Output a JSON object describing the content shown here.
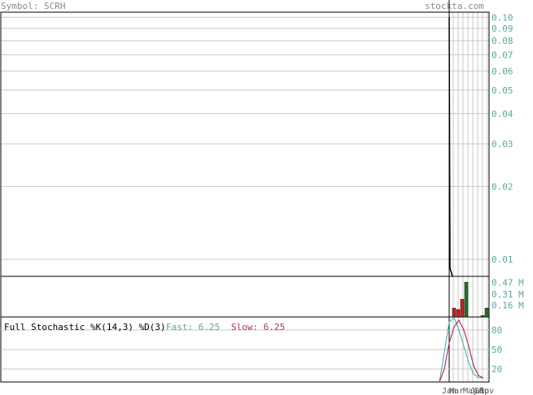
{
  "header": {
    "symbol_label": "Symbol: SCRH",
    "site": "stockta.com"
  },
  "colors": {
    "up": "#1f7a1f",
    "down": "#cc1f1f",
    "grid": "#c8c8c8",
    "axis_text": "#5aa6a0",
    "k_line": "#56b3b0",
    "d_line": "#b0306a"
  },
  "stochastic": {
    "title": "Full Stochastic %K(14,3) %D(3)",
    "fast_label": "Fast: 6.25",
    "slow_label": "Slow: 6.25"
  },
  "chart_data": [
    {
      "type": "line",
      "title": "",
      "ylabel": "",
      "y_scale": "log",
      "ylim": [
        0.0085,
        0.105
      ],
      "y_ticks": [
        "0.10",
        "0.09",
        "0.08",
        "0.07",
        "0.06",
        "0.05",
        "0.04",
        "0.03",
        "0.02",
        "0.01"
      ],
      "grid": true,
      "x_ticks": [
        "Jan",
        "Mar",
        "May",
        "Jul",
        "Sep",
        "Nov"
      ],
      "series": [
        {
          "values": [
            0.1,
            0.0092,
            0.0085
          ]
        }
      ]
    },
    {
      "type": "bar",
      "title": "",
      "y_ticks": [
        "0.47 M",
        "0.31 M",
        "0.16 M"
      ],
      "ylim": [
        0,
        0.55
      ],
      "values": [
        0.12,
        0.1,
        0.24,
        0.47,
        0.0,
        0.0,
        0.0,
        0.02,
        0.12
      ],
      "directions": [
        "down",
        "down",
        "down",
        "up",
        "down",
        "down",
        "down",
        "up",
        "up"
      ]
    },
    {
      "type": "line",
      "title": "Full Stochastic %K(14,3) %D(3)",
      "ylim": [
        0,
        100
      ],
      "y_ticks": [
        "80",
        "50",
        "20"
      ],
      "series": [
        {
          "name": "Fast",
          "values": [
            0,
            45,
            92,
            99,
            80,
            55,
            30,
            12,
            7,
            6.25
          ]
        },
        {
          "name": "Slow",
          "values": [
            0,
            20,
            60,
            85,
            95,
            80,
            55,
            25,
            10,
            6.25
          ]
        }
      ]
    }
  ]
}
